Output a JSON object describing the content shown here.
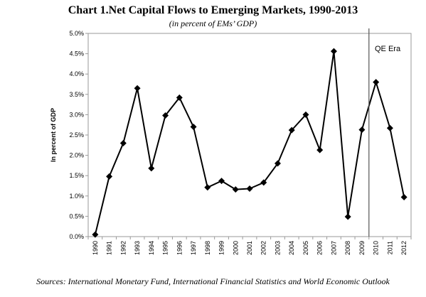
{
  "chart_data": {
    "type": "line",
    "title": "Chart 1.Net Capital Flows to Emerging Markets, 1990-2013",
    "subtitle": "(in percent of EMs’ GDP)",
    "xlabel": "",
    "ylabel": "In percent of GDP",
    "x": [
      "1990",
      "1991",
      "1992",
      "1993",
      "1994",
      "1995",
      "1996",
      "1997",
      "1998",
      "1999",
      "2000",
      "2001",
      "2002",
      "2003",
      "2004",
      "2005",
      "2006",
      "2007",
      "2008",
      "2009",
      "2010",
      "2011",
      "2012"
    ],
    "series": [
      {
        "values": [
          0.05,
          1.48,
          2.3,
          3.65,
          1.68,
          2.98,
          3.42,
          2.7,
          1.21,
          1.37,
          1.16,
          1.18,
          1.33,
          1.8,
          2.62,
          3.0,
          2.13,
          4.56,
          0.49,
          2.63,
          3.8,
          2.67,
          0.97
        ]
      }
    ],
    "yticks": [
      "0.0%",
      "0.5%",
      "1.0%",
      "1.5%",
      "2.0%",
      "2.5%",
      "3.0%",
      "3.5%",
      "4.0%",
      "4.5%",
      "5.0%"
    ],
    "ylim": [
      0,
      5.0
    ],
    "grid": false,
    "marker": "diamond",
    "line_color": "#000000",
    "annotation": {
      "text": "QE Era",
      "divider_between": [
        "2009",
        "2010"
      ]
    }
  },
  "footer": {
    "source": "Sources: International Monetary Fund, International Financial Statistics and World Economic Outlook"
  }
}
